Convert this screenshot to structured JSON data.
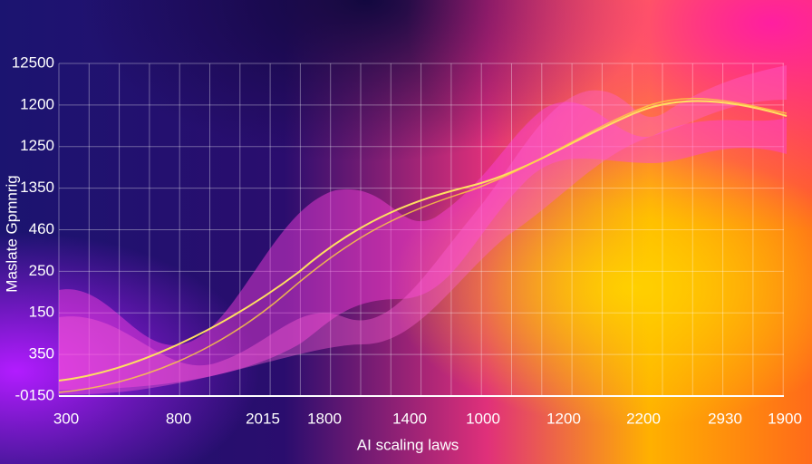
{
  "title": "AI scaling laws",
  "y_axis_title": "Maslate Gpmnrig",
  "y_labels": [
    "12500",
    "1200",
    "1250",
    "1350",
    "460",
    "250",
    "150",
    "350",
    "-0150"
  ],
  "x_labels": [
    "300",
    "800",
    "2015",
    "1800",
    "1400",
    "1000",
    "1200",
    "2200",
    "2930",
    "1900"
  ]
}
